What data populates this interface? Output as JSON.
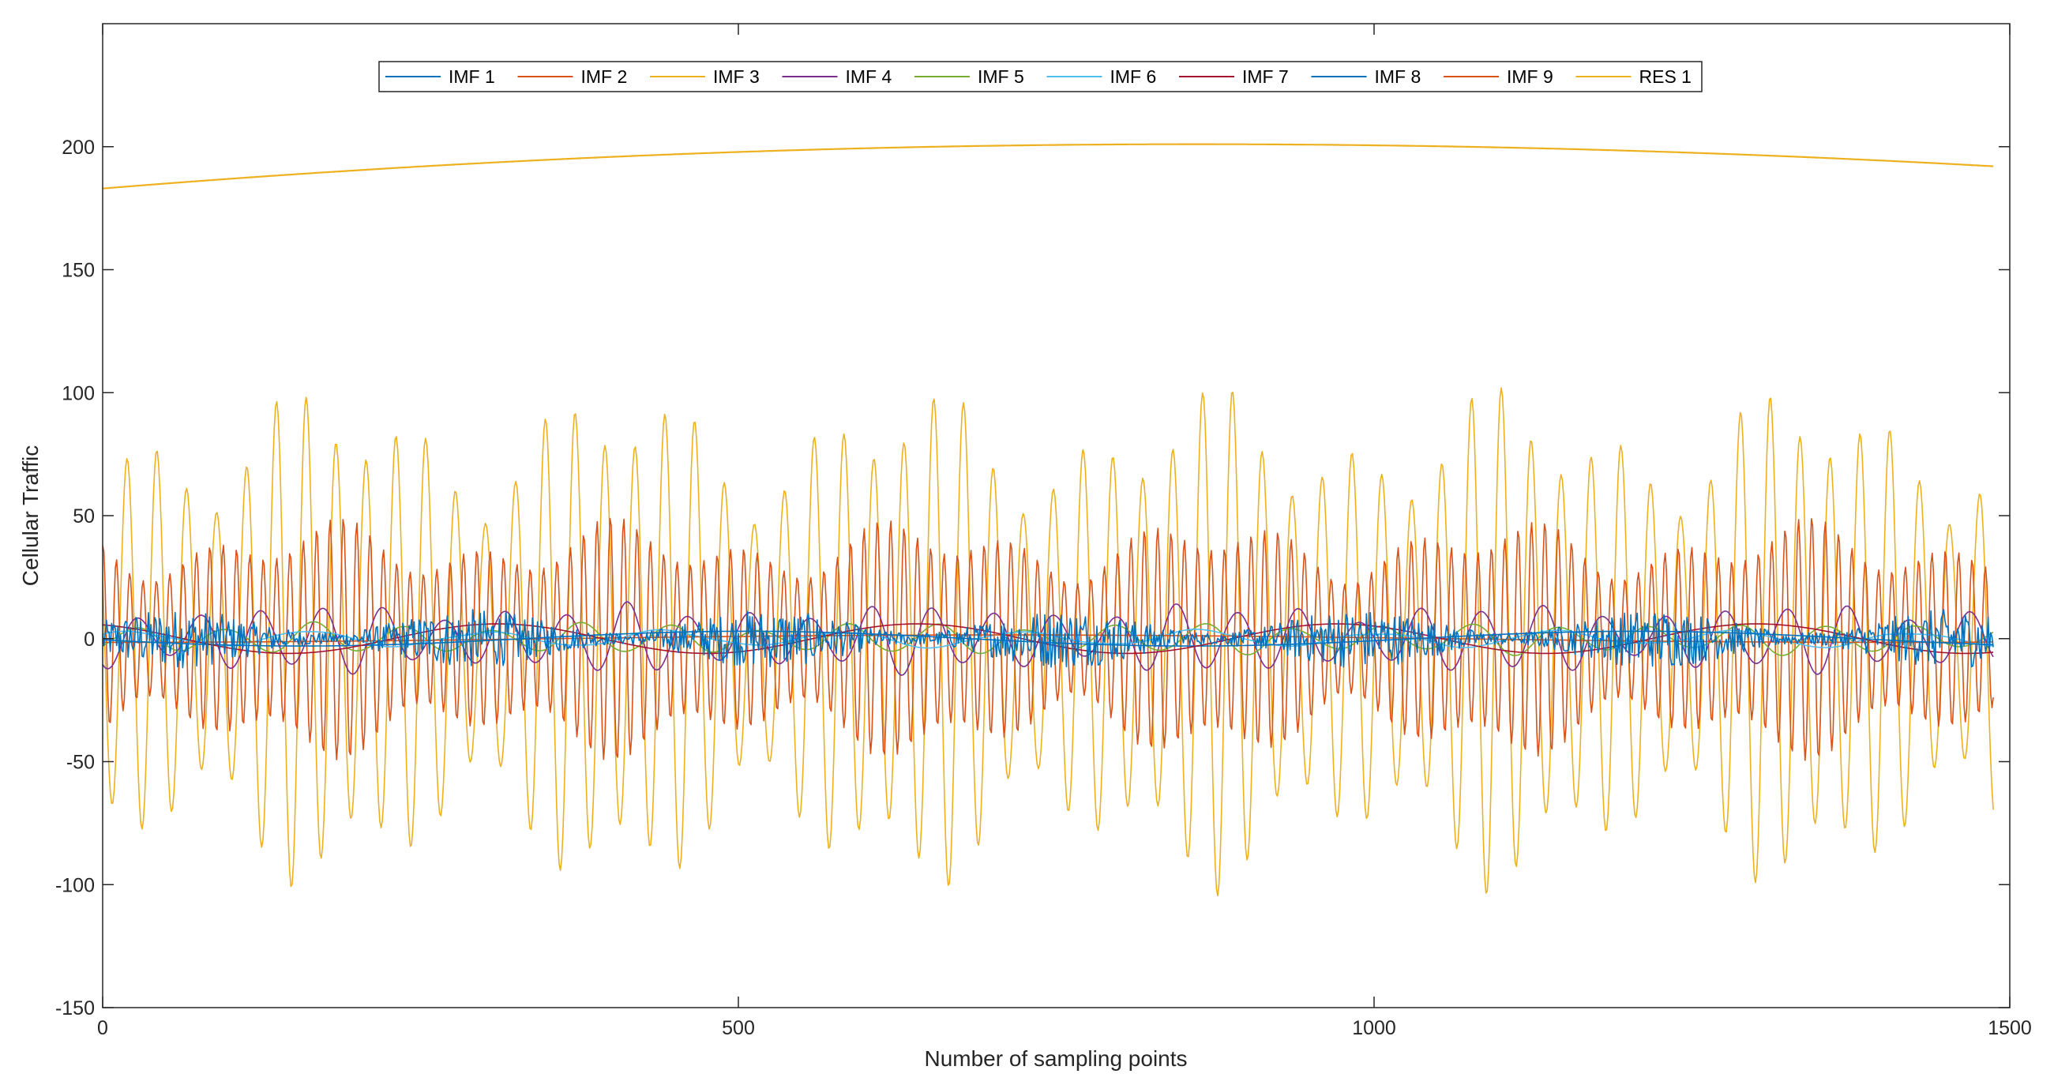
{
  "chart_data": {
    "type": "line",
    "title": "",
    "xlabel": "Number of sampling points",
    "ylabel": "Cellular Traffic",
    "xlim": [
      0,
      1500
    ],
    "ylim": [
      -150,
      250
    ],
    "x_ticks": [
      0,
      500,
      1000,
      1500
    ],
    "y_ticks": [
      -150,
      -100,
      -50,
      0,
      50,
      100,
      150,
      200
    ],
    "x_tick_labels": [
      "0",
      "500",
      "1000",
      "1500"
    ],
    "y_tick_labels": [
      "-150",
      "-100",
      "-50",
      "0",
      "50",
      "100",
      "150",
      "200"
    ],
    "grid": false,
    "legend_position": "top-center",
    "n_points": 1488,
    "series": [
      {
        "name": "IMF 1",
        "color": "#0072BD",
        "model": "noise",
        "amplitude": 12,
        "period": 3,
        "mean": 0
      },
      {
        "name": "IMF 2",
        "color": "#D95319",
        "model": "oscillation",
        "amplitude": 50,
        "period": 10.5,
        "mean": 0
      },
      {
        "name": "IMF 3",
        "color": "#EDB120",
        "model": "oscillation",
        "amplitude": 105,
        "period": 23.5,
        "mean": 0
      },
      {
        "name": "IMF 4",
        "color": "#7E2F8E",
        "model": "oscillation",
        "amplitude": 15,
        "period": 48,
        "mean": 0
      },
      {
        "name": "IMF 5",
        "color": "#77AC30",
        "model": "oscillation",
        "amplitude": 7,
        "period": 70,
        "mean": 0
      },
      {
        "name": "IMF 6",
        "color": "#4DBEEE",
        "model": "oscillation",
        "amplitude": 4,
        "period": 140,
        "mean": 0
      },
      {
        "name": "IMF 7",
        "color": "#A2142F",
        "model": "slow_wave",
        "amplitude": 6,
        "period": 330,
        "mean": 0
      },
      {
        "name": "IMF 8",
        "color": "#0072BD",
        "model": "slow_wave",
        "amplitude": 3,
        "period": 700,
        "mean": 0
      },
      {
        "name": "IMF 9",
        "color": "#D95319",
        "model": "slow_wave",
        "amplitude": 1.5,
        "period": 1400,
        "mean": 0
      },
      {
        "name": "RES 1",
        "color": "#EDB120",
        "model": "trend",
        "y_start": 183,
        "y_peak": 201,
        "x_peak": 860,
        "y_end": 192
      }
    ]
  }
}
